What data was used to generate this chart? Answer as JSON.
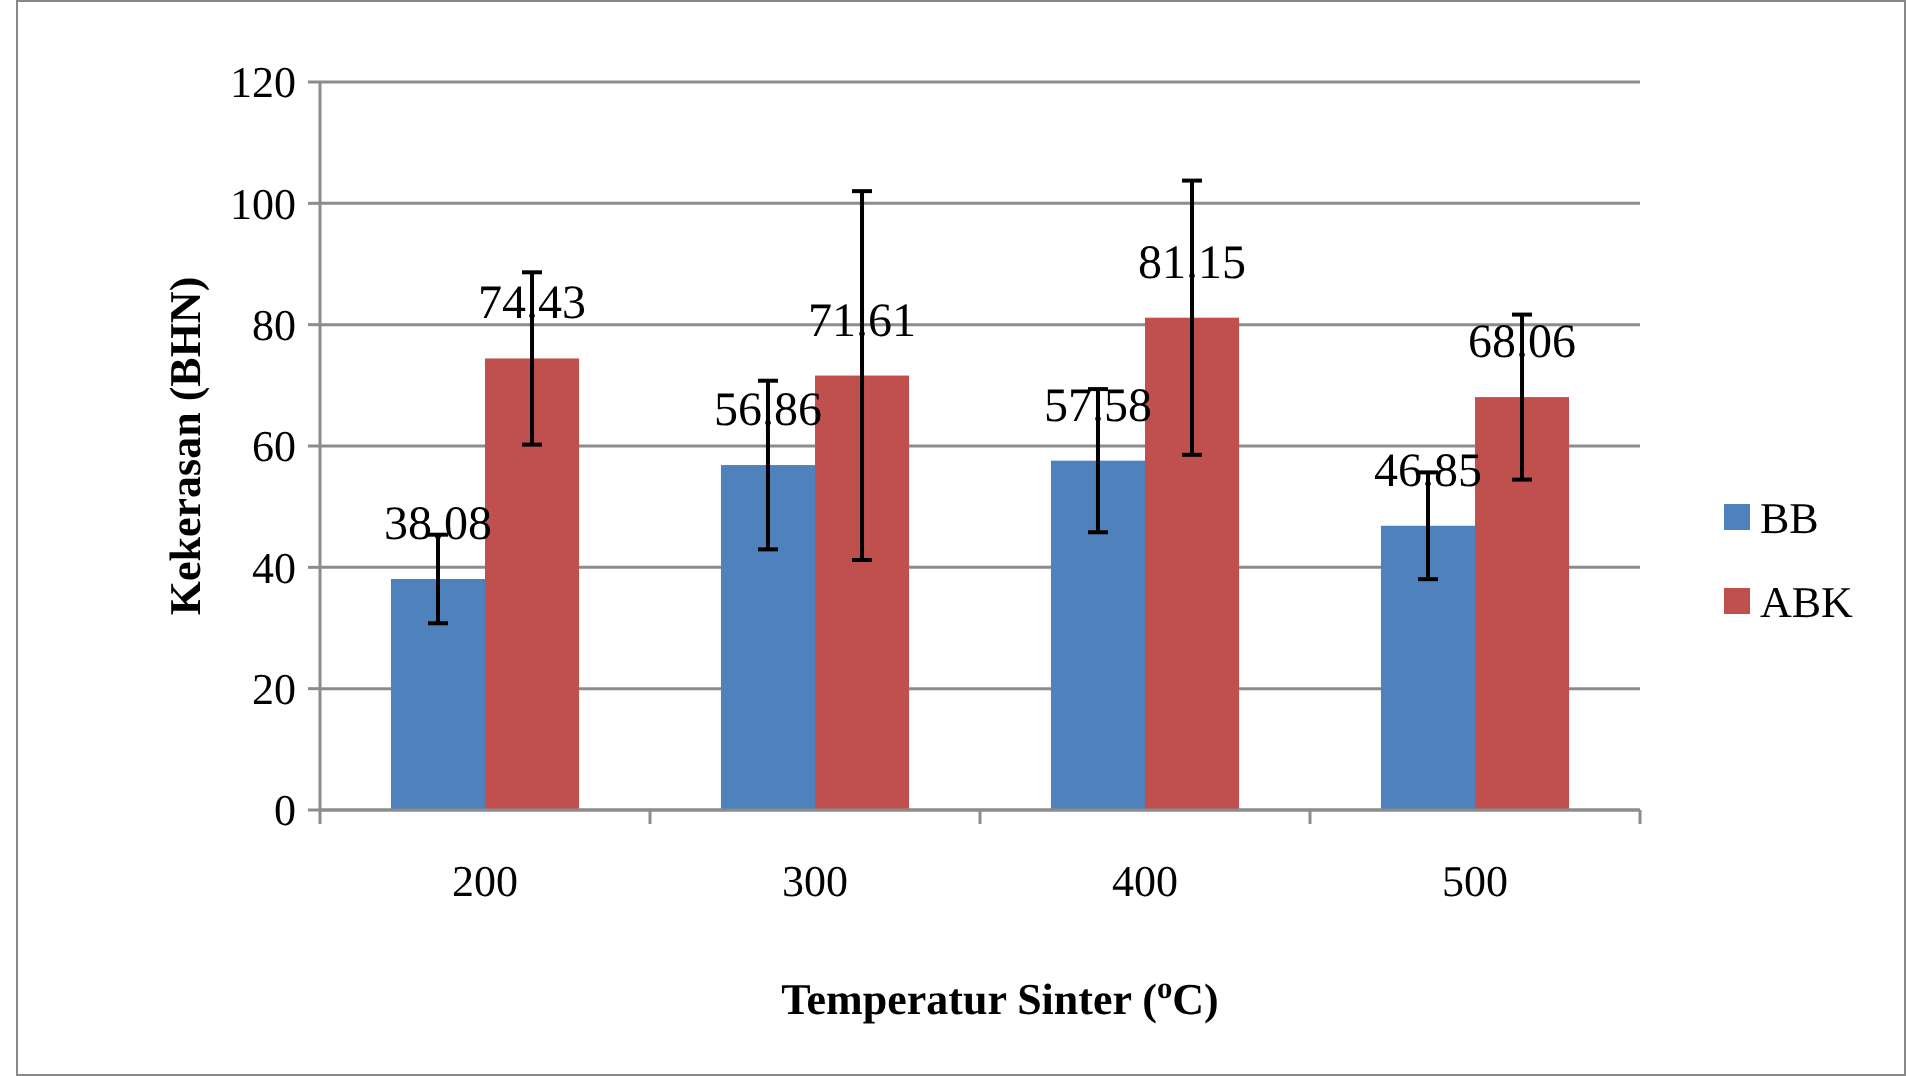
{
  "chart_data": {
    "type": "bar",
    "xlabel": "Temperatur Sinter ($^{o}$C)",
    "ylabel": "Kekerasan (BHN)",
    "categories": [
      "200",
      "300",
      "400",
      "500"
    ],
    "series": [
      {
        "name": "BB",
        "color": "#4f81bd",
        "values": [
          38.08,
          56.86,
          57.58,
          46.85
        ],
        "errors": [
          7.3,
          13.9,
          11.8,
          8.8
        ]
      },
      {
        "name": "ABK",
        "color": "#c0504d",
        "values": [
          74.43,
          71.61,
          81.15,
          68.06
        ],
        "errors": [
          14.2,
          30.4,
          22.6,
          13.6
        ]
      }
    ],
    "ylim": [
      0,
      120
    ],
    "yticks": [
      0,
      20,
      40,
      60,
      80,
      100,
      120
    ],
    "grid": "y",
    "legend": "right",
    "data_labels": true
  }
}
